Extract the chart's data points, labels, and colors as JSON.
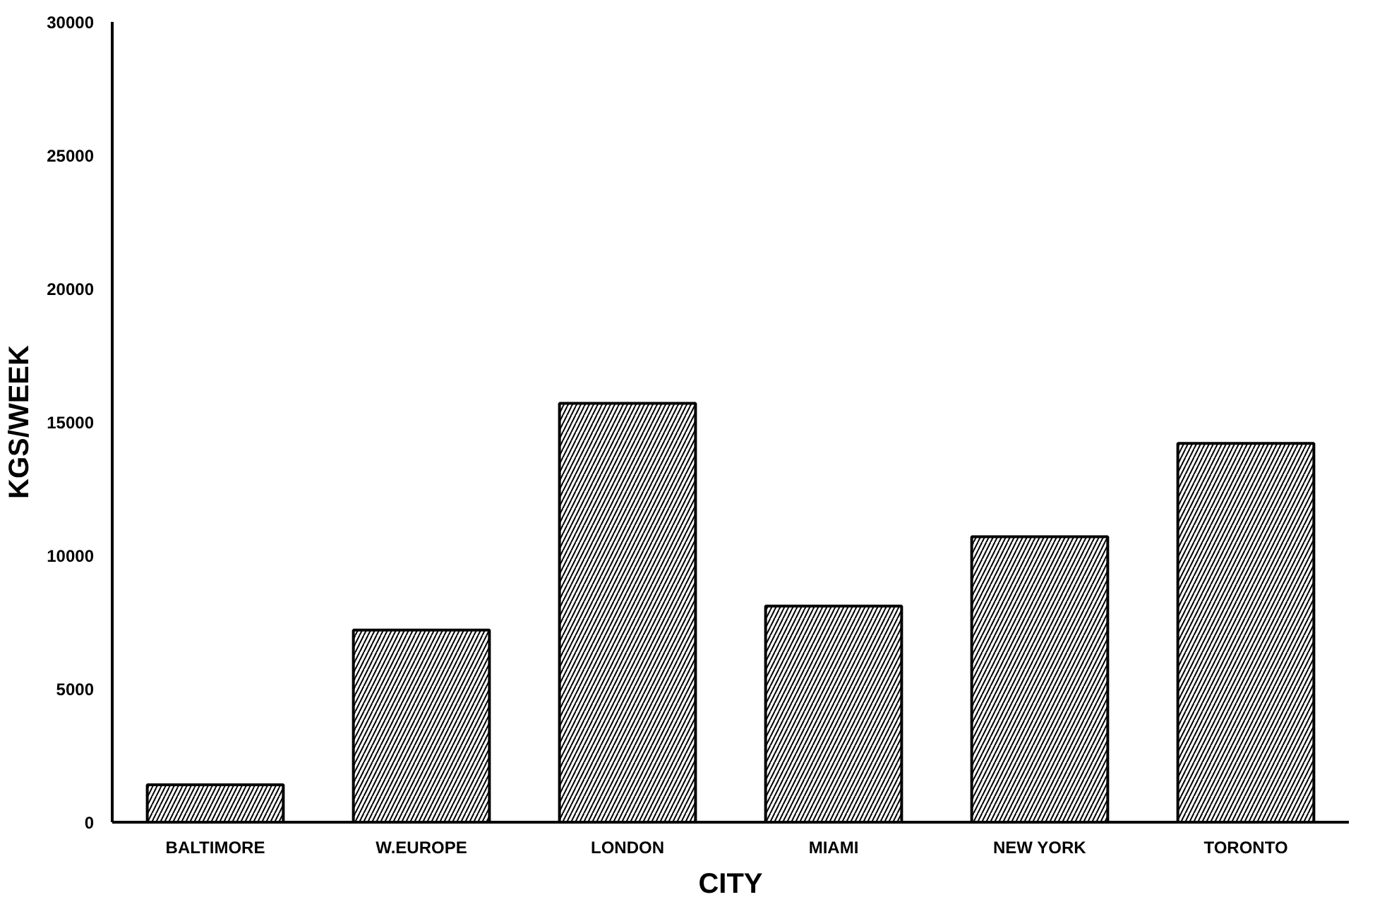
{
  "chart_data": {
    "type": "bar",
    "xlabel": "CITY",
    "ylabel": "KGS/WEEK",
    "categories": [
      "BALTIMORE",
      "W.EUROPE",
      "LONDON",
      "MIAMI",
      "NEW YORK",
      "TORONTO"
    ],
    "values": [
      1400,
      7200,
      15700,
      8100,
      10700,
      14200
    ],
    "color": "#000000",
    "ylim": [
      0,
      30000
    ],
    "yticks": [
      0,
      5000,
      10000,
      15000,
      20000,
      25000,
      30000
    ],
    "grid": false
  }
}
